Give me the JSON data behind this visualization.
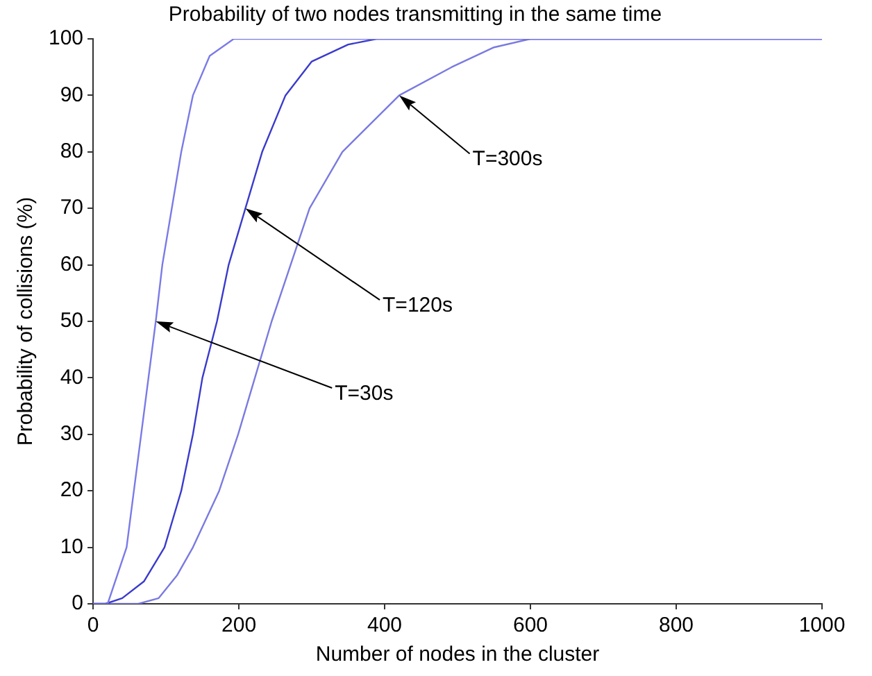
{
  "chart_data": {
    "type": "line",
    "title": "Probability of two nodes transmitting in the same time",
    "xlabel": "Number of nodes in the cluster",
    "ylabel": "Probability of collisions (%)",
    "series": [
      {
        "color": "#7a7ae8",
        "x": [
          0,
          20,
          46,
          56,
          66,
          76,
          86,
          95,
          108,
          121,
          137,
          160,
          193,
          250,
          1000
        ],
        "values": [
          0,
          0,
          10,
          20,
          30,
          40,
          50,
          60,
          70,
          80,
          90,
          97,
          100,
          100,
          100
        ]
      },
      {
        "color": "#3a3acc",
        "x": [
          0,
          17,
          40,
          70,
          98,
          121,
          137,
          150,
          170,
          186,
          209,
          232,
          264,
          300,
          350,
          389,
          1000
        ],
        "values": [
          0,
          0,
          1,
          4,
          10,
          20,
          30,
          40,
          50,
          60,
          70,
          80,
          90,
          96,
          99,
          100,
          100
        ]
      },
      {
        "color": "#7a7ae0",
        "x": [
          0,
          62,
          90,
          115,
          137,
          173,
          199,
          222,
          245,
          271,
          297,
          342,
          420,
          492,
          550,
          600,
          1000
        ],
        "values": [
          0,
          0,
          1,
          5,
          10,
          20,
          30,
          40,
          50,
          60,
          70,
          80,
          90,
          95,
          98.5,
          100,
          100
        ]
      }
    ],
    "xlim": [
      0,
      1000
    ],
    "xticks": [
      0,
      200,
      400,
      600,
      800,
      1000
    ],
    "ylim": [
      0,
      100
    ],
    "yticks": [
      0,
      10,
      20,
      30,
      40,
      50,
      60,
      70,
      80,
      90,
      100
    ],
    "grid": false,
    "legend": false,
    "marker": "none",
    "line_style": "solid",
    "annotations": [
      "T=300s",
      "T=120s",
      "T=30s"
    ]
  }
}
